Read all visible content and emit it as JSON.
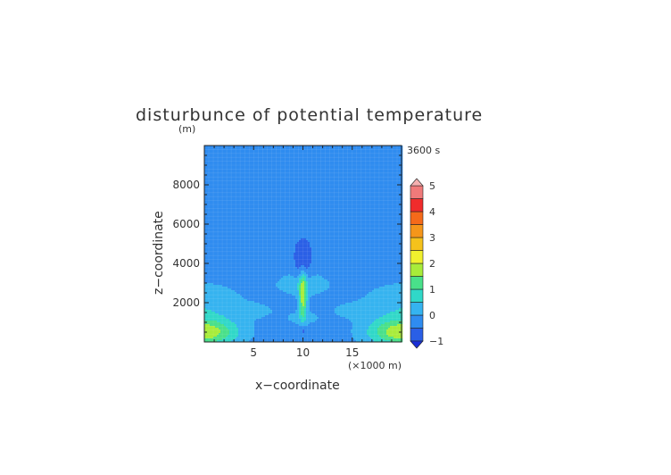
{
  "chart_data": {
    "type": "heatmap",
    "title": "disturbunce of potential temperature",
    "time_label": "3600 s",
    "xlabel": "x−coordinate",
    "xunit": "(×1000 m)",
    "ylabel": "z−coordinate",
    "yunit": "(m)",
    "xlim": [
      0,
      20
    ],
    "ylim": [
      0,
      10000
    ],
    "xticks": [
      5,
      10,
      15
    ],
    "yticks": [
      2000,
      4000,
      6000,
      8000
    ],
    "colorbar": {
      "min": -1,
      "max": 5,
      "step": 0.5,
      "tick_labels": [
        "−1",
        "0",
        "1",
        "2",
        "3",
        "4",
        "5"
      ],
      "tick_values": [
        -1,
        0,
        1,
        2,
        3,
        4,
        5
      ],
      "colors": [
        "#1a2fd6",
        "#2a5fe6",
        "#2f8cf0",
        "#35b3f0",
        "#30d8c8",
        "#49e08a",
        "#a8ec3a",
        "#f0f02e",
        "#f5c21c",
        "#f5961a",
        "#f56a1a",
        "#f02c2c",
        "#f07a7a",
        "#f5b0b0"
      ]
    }
  }
}
